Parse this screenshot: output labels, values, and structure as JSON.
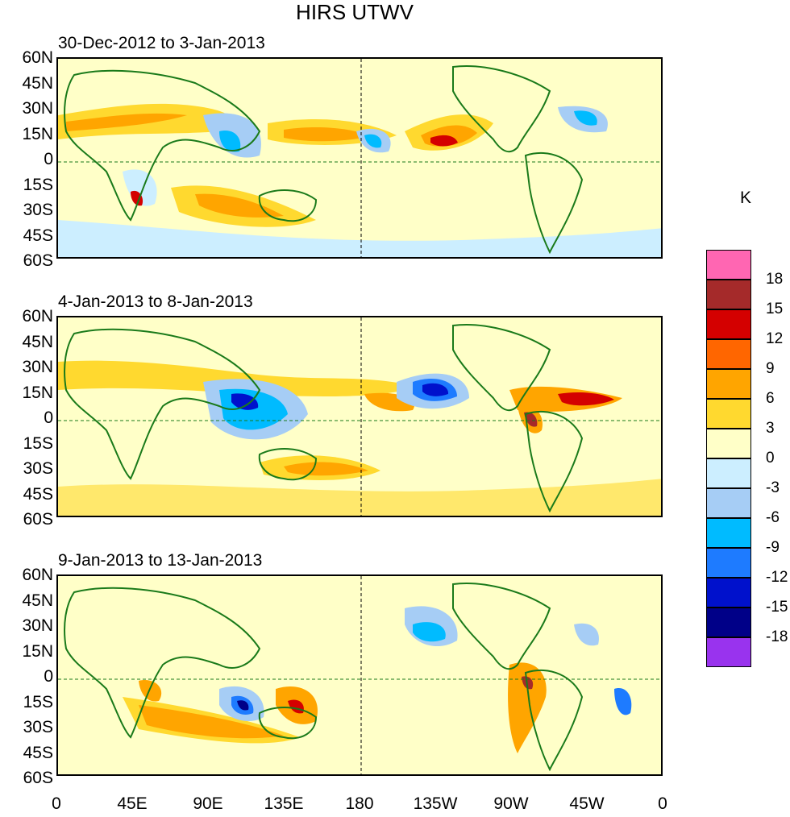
{
  "title": "HIRS UTWV",
  "panels": [
    {
      "title": "30-Dec-2012 to 3-Jan-2013"
    },
    {
      "title": "4-Jan-2013 to 8-Jan-2013"
    },
    {
      "title": "9-Jan-2013 to 13-Jan-2013"
    }
  ],
  "lat_labels": [
    "60N",
    "45N",
    "30N",
    "15N",
    "0",
    "15S",
    "30S",
    "45S",
    "60S"
  ],
  "lon_labels": [
    "0",
    "45E",
    "90E",
    "135E",
    "180",
    "135W",
    "90W",
    "45W",
    "0"
  ],
  "legend": {
    "unit": "K",
    "labels": [
      "18",
      "15",
      "12",
      "9",
      "6",
      "3",
      "0",
      "-3",
      "-6",
      "-9",
      "-12",
      "-15",
      "-18"
    ],
    "colors": [
      "#ff66b2",
      "#a52a2a",
      "#d40000",
      "#ff6600",
      "#ffa500",
      "#ffd92f",
      "#ffffc8",
      "#cceeff",
      "#a6cdf5",
      "#00bbff",
      "#1e7bff",
      "#0011cc",
      "#000088",
      "#9933ee"
    ]
  },
  "map_colors": {
    "land_outline": "#1a7a1a",
    "ocean_base": "#ffffc8"
  }
}
